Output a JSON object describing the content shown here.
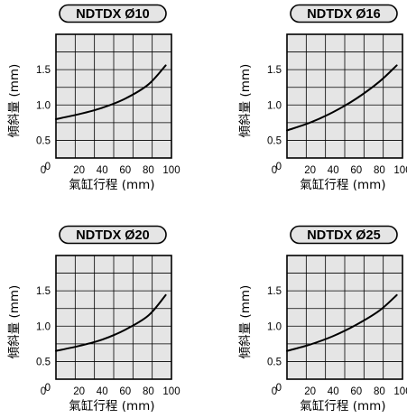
{
  "chart_data": [
    {
      "type": "line",
      "title": "NDTDX Ø10",
      "xlabel": "氣缸行程 (mm)",
      "ylabel": "傾斜量 (mm)",
      "xlim": [
        0,
        100
      ],
      "ylim": [
        0.25,
        2.0
      ],
      "x_ticks": [
        "0",
        "20",
        "40",
        "60",
        "80",
        "100"
      ],
      "y_ticks": [
        "0",
        "0.5",
        "1.0",
        "1.5"
      ],
      "grid": true,
      "series": [
        {
          "x": [
            0,
            20,
            40,
            60,
            80,
            95
          ],
          "y": [
            0.8,
            0.87,
            0.96,
            1.09,
            1.29,
            1.56
          ]
        }
      ]
    },
    {
      "type": "line",
      "title": "NDTDX Ø16",
      "xlabel": "氣缸行程 (mm)",
      "ylabel": "傾斜量 (mm)",
      "xlim": [
        0,
        100
      ],
      "ylim": [
        0.25,
        2.0
      ],
      "x_ticks": [
        "0",
        "20",
        "40",
        "60",
        "80",
        "100"
      ],
      "y_ticks": [
        "0",
        "0.5",
        "1.0",
        "1.5"
      ],
      "grid": true,
      "series": [
        {
          "x": [
            0,
            20,
            40,
            60,
            80,
            95
          ],
          "y": [
            0.64,
            0.75,
            0.9,
            1.09,
            1.33,
            1.56
          ]
        }
      ]
    },
    {
      "type": "line",
      "title": "NDTDX Ø20",
      "xlabel": "氣缸行程 (mm)",
      "ylabel": "傾斜量 (mm)",
      "xlim": [
        0,
        100
      ],
      "ylim": [
        0.25,
        2.0
      ],
      "x_ticks": [
        "0",
        "20",
        "40",
        "60",
        "80",
        "100"
      ],
      "y_ticks": [
        "0",
        "0.5",
        "1.0",
        "1.5"
      ],
      "grid": true,
      "series": [
        {
          "x": [
            0,
            20,
            40,
            60,
            80,
            95
          ],
          "y": [
            0.65,
            0.72,
            0.81,
            0.95,
            1.15,
            1.44
          ]
        }
      ]
    },
    {
      "type": "line",
      "title": "NDTDX Ø25",
      "xlabel": "氣缸行程 (mm)",
      "ylabel": "傾斜量 (mm)",
      "xlim": [
        0,
        100
      ],
      "ylim": [
        0.25,
        2.0
      ],
      "x_ticks": [
        "0",
        "20",
        "40",
        "60",
        "80",
        "100"
      ],
      "y_ticks": [
        "0",
        "0.5",
        "1.0",
        "1.5"
      ],
      "grid": true,
      "series": [
        {
          "x": [
            0,
            20,
            40,
            60,
            80,
            95
          ],
          "y": [
            0.65,
            0.74,
            0.86,
            1.02,
            1.22,
            1.44
          ]
        }
      ]
    }
  ],
  "style": {
    "plot_background": "#e5e5e5",
    "grid_color": "#000000",
    "curve_color": "#000000",
    "title_pill_fill": "#e5e5e5"
  }
}
